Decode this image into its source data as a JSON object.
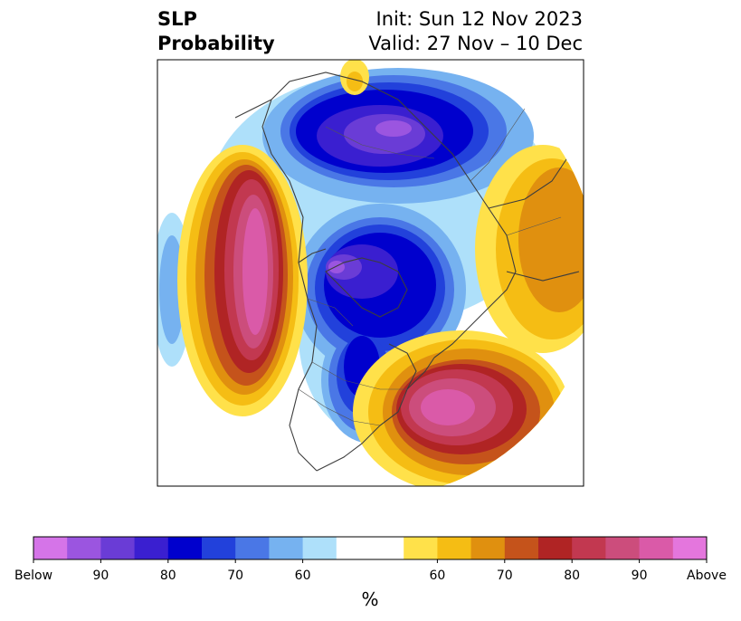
{
  "title": {
    "left_line1": "SLP",
    "left_line2": "Probability",
    "right_line1": "Init: Sun 12 Nov 2023",
    "right_line2": "Valid: 27 Nov – 10 Dec"
  },
  "colorbar": {
    "unit_label": "%",
    "ticks": [
      "Below",
      "90",
      "80",
      "70",
      "60",
      "60",
      "70",
      "80",
      "90",
      "Above"
    ],
    "colors": [
      "#d574e8",
      "#9b55e0",
      "#6a3cd6",
      "#3a1fd0",
      "#0000cd",
      "#2241db",
      "#4a77e6",
      "#76b2f0",
      "#aee0fa",
      "#ffffff",
      "#ffffff",
      "#ffe14a",
      "#f5bd14",
      "#e0900f",
      "#c5531b",
      "#b02424",
      "#c23850",
      "#cc4d7c",
      "#da5aa8",
      "#e476dd"
    ]
  },
  "map": {
    "regions": [
      {
        "name": "above-normal-north-pacific",
        "category": "above"
      },
      {
        "name": "above-normal-north-atlantic",
        "category": "above"
      },
      {
        "name": "above-normal-eurasia",
        "category": "above"
      },
      {
        "name": "below-normal-arctic",
        "category": "below"
      },
      {
        "name": "below-normal-siberia",
        "category": "below"
      },
      {
        "name": "below-normal-canada",
        "category": "below"
      }
    ]
  }
}
